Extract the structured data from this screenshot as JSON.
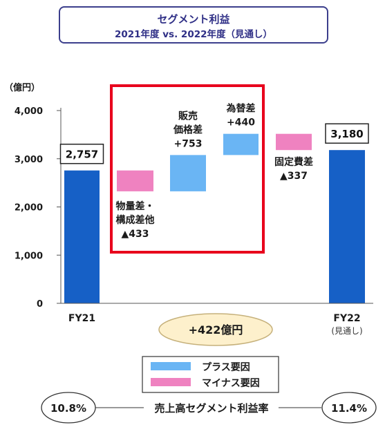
{
  "title": "セグメント利益",
  "subtitle": "2021年度 vs. 2022年度（見通し）",
  "unit_label": "（億円）",
  "colors": {
    "total_bar": "#1660c6",
    "plus": "#6ab5f4",
    "minus": "#ef82c0",
    "highlight": "#e8001c",
    "summary_fill": "#fdf0cc",
    "summary_border": "#c5b07a"
  },
  "chart_data": {
    "type": "bar",
    "subtype": "waterfall",
    "ylim": [
      0,
      4000
    ],
    "yticks": [
      "0",
      "1,000",
      "2,000",
      "3,000",
      "4,000"
    ],
    "bars": [
      {
        "key": "fy21",
        "kind": "total",
        "start": 0,
        "end": 2757,
        "value_label": "2,757",
        "x_label": "FY21",
        "x_sublabel": ""
      },
      {
        "key": "material",
        "kind": "minus",
        "start": 2757,
        "end": 2324,
        "label_lines": [
          "物量差・",
          "構成差他",
          "▲433"
        ]
      },
      {
        "key": "price",
        "kind": "plus",
        "start": 2324,
        "end": 3077,
        "label_lines": [
          "販売",
          "価格差",
          "+753"
        ]
      },
      {
        "key": "fx",
        "kind": "plus",
        "start": 3077,
        "end": 3517,
        "label_lines": [
          "為替差",
          "+440"
        ]
      },
      {
        "key": "fixed",
        "kind": "minus",
        "start": 3517,
        "end": 3180,
        "label_lines": [
          "固定費差",
          "▲337"
        ]
      },
      {
        "key": "fy22",
        "kind": "total",
        "start": 0,
        "end": 3180,
        "value_label": "3,180",
        "x_label": "FY22",
        "x_sublabel": "(見通し)"
      }
    ],
    "summary": "+422億円",
    "legend": [
      {
        "kind": "plus",
        "label": "プラス要因"
      },
      {
        "kind": "minus",
        "label": "マイナス要因"
      }
    ],
    "margin_label": "売上高セグメント利益率",
    "margin_fy21": "10.8%",
    "margin_fy22": "11.4%"
  }
}
